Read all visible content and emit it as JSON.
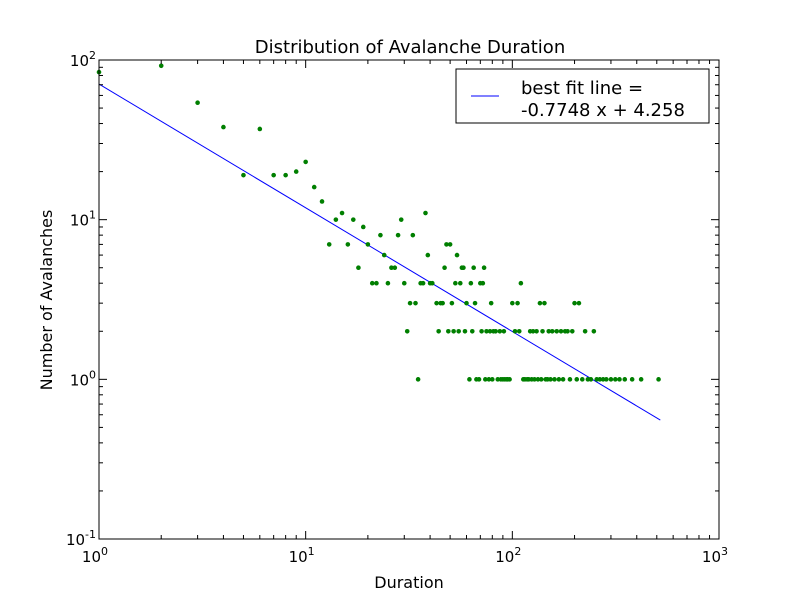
{
  "chart_data": {
    "type": "scatter",
    "title": "Distribution of Avalanche Duration",
    "xlabel": "Duration",
    "ylabel": "Number of Avalanches",
    "x_scale": "log",
    "y_scale": "log",
    "xlim": [
      1,
      1000
    ],
    "ylim": [
      0.1,
      100
    ],
    "x_ticks": [
      {
        "value": 1,
        "base": "10",
        "exp": "0"
      },
      {
        "value": 10,
        "base": "10",
        "exp": "1"
      },
      {
        "value": 100,
        "base": "10",
        "exp": "2"
      },
      {
        "value": 1000,
        "base": "10",
        "exp": "3"
      }
    ],
    "y_ticks": [
      {
        "value": 0.1,
        "base": "10",
        "exp": "-1"
      },
      {
        "value": 1,
        "base": "10",
        "exp": "0"
      },
      {
        "value": 10,
        "base": "10",
        "exp": "1"
      },
      {
        "value": 100,
        "base": "10",
        "exp": "2"
      }
    ],
    "grid": false,
    "legend": {
      "position": "top-right",
      "line1": "best fit line =",
      "line2": "-0.7748 x + 4.258"
    },
    "series": [
      {
        "kind": "points",
        "color": "#007f00",
        "points": [
          [
            1,
            84
          ],
          [
            2,
            92
          ],
          [
            3,
            54
          ],
          [
            4,
            38
          ],
          [
            5,
            19
          ],
          [
            6,
            37
          ],
          [
            7,
            19
          ],
          [
            8,
            19
          ],
          [
            9,
            20
          ],
          [
            10,
            23
          ],
          [
            11,
            16
          ],
          [
            12,
            13
          ],
          [
            13,
            7
          ],
          [
            14,
            10
          ],
          [
            15,
            11
          ],
          [
            16,
            7
          ],
          [
            17,
            10
          ],
          [
            18,
            5
          ],
          [
            19,
            9
          ],
          [
            20,
            7
          ],
          [
            21,
            4
          ],
          [
            22,
            4
          ],
          [
            23,
            8
          ],
          [
            24,
            6
          ],
          [
            25,
            4
          ],
          [
            26,
            5
          ],
          [
            27,
            5
          ],
          [
            28,
            8
          ],
          [
            29,
            10
          ],
          [
            30,
            4
          ],
          [
            31,
            2
          ],
          [
            32,
            3
          ],
          [
            33,
            8
          ],
          [
            34,
            3
          ],
          [
            35,
            1
          ],
          [
            36,
            4
          ],
          [
            37,
            4
          ],
          [
            38,
            11
          ],
          [
            39,
            6
          ],
          [
            40,
            4
          ],
          [
            41,
            4
          ],
          [
            43,
            3
          ],
          [
            44,
            2
          ],
          [
            45,
            3
          ],
          [
            46,
            3
          ],
          [
            47,
            5
          ],
          [
            48,
            7
          ],
          [
            49,
            2
          ],
          [
            50,
            7
          ],
          [
            51,
            3
          ],
          [
            52,
            2
          ],
          [
            53,
            4
          ],
          [
            54,
            6
          ],
          [
            55,
            2
          ],
          [
            56,
            4
          ],
          [
            57,
            5
          ],
          [
            58,
            5
          ],
          [
            59,
            2
          ],
          [
            60,
            3
          ],
          [
            62,
            1
          ],
          [
            63,
            4
          ],
          [
            64,
            2
          ],
          [
            65,
            5
          ],
          [
            66,
            3
          ],
          [
            67,
            1
          ],
          [
            69,
            1
          ],
          [
            70,
            4
          ],
          [
            71,
            2
          ],
          [
            72,
            4
          ],
          [
            73,
            5
          ],
          [
            74,
            1
          ],
          [
            75,
            2
          ],
          [
            77,
            1
          ],
          [
            78,
            2
          ],
          [
            79,
            3
          ],
          [
            80,
            1
          ],
          [
            81,
            2
          ],
          [
            83,
            2
          ],
          [
            85,
            1
          ],
          [
            87,
            2
          ],
          [
            88,
            1
          ],
          [
            90,
            1
          ],
          [
            91,
            2
          ],
          [
            92,
            1
          ],
          [
            94,
            1
          ],
          [
            95,
            1
          ],
          [
            97,
            1
          ],
          [
            100,
            3
          ],
          [
            103,
            2
          ],
          [
            106,
            3
          ],
          [
            108,
            2
          ],
          [
            110,
            4
          ],
          [
            113,
            1
          ],
          [
            115,
            1
          ],
          [
            118,
            1
          ],
          [
            120,
            1
          ],
          [
            122,
            2
          ],
          [
            124,
            1
          ],
          [
            126,
            2
          ],
          [
            128,
            1
          ],
          [
            131,
            2
          ],
          [
            133,
            1
          ],
          [
            136,
            3
          ],
          [
            138,
            1
          ],
          [
            140,
            2
          ],
          [
            143,
            3
          ],
          [
            145,
            1
          ],
          [
            148,
            1
          ],
          [
            150,
            2
          ],
          [
            153,
            1
          ],
          [
            156,
            2
          ],
          [
            160,
            1
          ],
          [
            164,
            2
          ],
          [
            168,
            1
          ],
          [
            172,
            2
          ],
          [
            176,
            1
          ],
          [
            180,
            2
          ],
          [
            185,
            2
          ],
          [
            190,
            1
          ],
          [
            195,
            2
          ],
          [
            200,
            3
          ],
          [
            205,
            1
          ],
          [
            210,
            3
          ],
          [
            218,
            1
          ],
          [
            225,
            2
          ],
          [
            232,
            1
          ],
          [
            240,
            1
          ],
          [
            248,
            2
          ],
          [
            256,
            1
          ],
          [
            265,
            1
          ],
          [
            275,
            1
          ],
          [
            285,
            1
          ],
          [
            300,
            1
          ],
          [
            315,
            1
          ],
          [
            330,
            1
          ],
          [
            350,
            1
          ],
          [
            380,
            1
          ],
          [
            420,
            1
          ],
          [
            510,
            1
          ]
        ]
      },
      {
        "kind": "fit-line",
        "color": "#0000ff",
        "slope": -0.7748,
        "intercept": 4.258,
        "x_range": [
          1,
          520
        ]
      }
    ]
  }
}
